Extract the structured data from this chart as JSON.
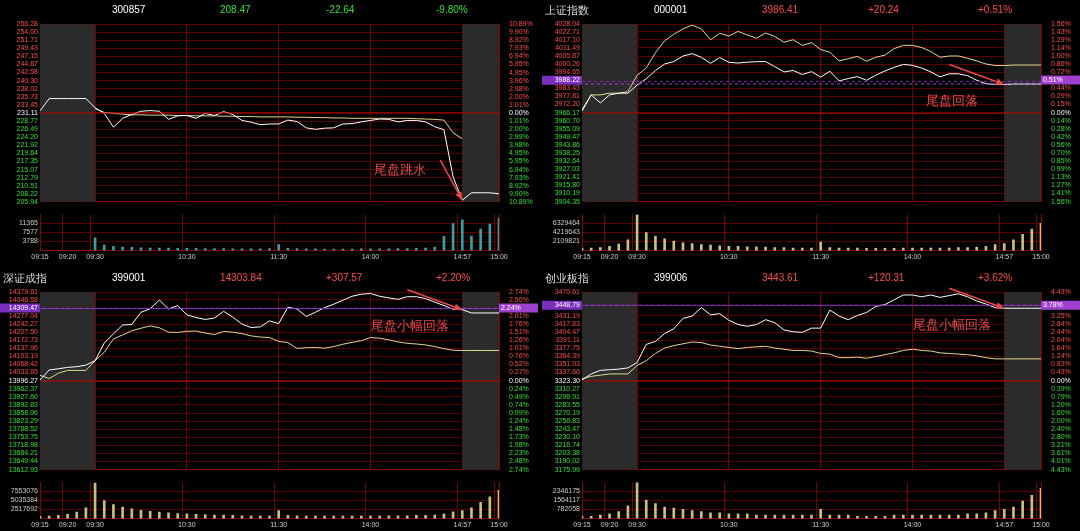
{
  "chart_data": [
    {
      "type": "line",
      "annotations": [
        "300857",
        "208.47",
        "-22.64",
        "-9.80%",
        {
          "text": "尾盘跳水",
          "x": "14:57",
          "y": 206.4
        }
      ],
      "categories": [
        "09:15",
        null,
        null,
        "09:20",
        null,
        null,
        "09:30",
        null,
        null,
        null,
        null,
        null,
        null,
        null,
        null,
        null,
        "10:30",
        null,
        null,
        null,
        null,
        null,
        null,
        null,
        null,
        null,
        "11:30",
        null,
        null,
        null,
        null,
        null,
        null,
        null,
        null,
        null,
        "14:00",
        null,
        null,
        null,
        null,
        null,
        null,
        null,
        null,
        null,
        "14:57",
        null,
        null,
        null,
        "15:00"
      ],
      "ylim": [
        205.94,
        256.28
      ],
      "yticks": [
        256.28,
        {
          "value": 254,
          "label": "254.00"
        },
        251.71,
        249.43,
        247.15,
        244.87,
        242.58,
        {
          "value": 240.3,
          "label": "240.30"
        },
        238.02,
        235.73,
        233.45,
        231.11,
        228.77,
        226.49,
        {
          "value": 224.2,
          "label": "224.20"
        },
        221.92,
        219.64,
        217.35,
        215.07,
        212.79,
        210.51,
        208.22,
        205.94
      ],
      "y2lim": [
        -10.89,
        10.89
      ],
      "y2ticks": [
        {
          "value": 10.89,
          "label": "10.89%"
        },
        {
          "value": 9.9,
          "label": "9.90%"
        },
        {
          "value": 8.92,
          "label": "8.92%"
        },
        {
          "value": 7.93,
          "label": "7.93%"
        },
        {
          "value": 6.94,
          "label": "6.94%"
        },
        {
          "value": 5.95,
          "label": "5.95%"
        },
        {
          "value": 4.95,
          "label": "4.95%"
        },
        {
          "value": 3.96,
          "label": "3.96%"
        },
        {
          "value": 2.98,
          "label": "2.98%"
        },
        {
          "value": 2,
          "label": "2.00%"
        },
        {
          "value": 1.01,
          "label": "1.01%"
        },
        {
          "value": 0,
          "label": "0.00%"
        },
        {
          "value": -1.01,
          "label": "1.01%"
        },
        {
          "value": -2,
          "label": "2.00%"
        },
        {
          "value": -2.99,
          "label": "2.99%"
        },
        {
          "value": -3.98,
          "label": "3.98%"
        },
        {
          "value": -4.95,
          "label": "4.95%"
        },
        {
          "value": -5.95,
          "label": "5.95%"
        },
        {
          "value": -6.94,
          "label": "6.94%"
        },
        {
          "value": -7.93,
          "label": "7.93%"
        },
        {
          "value": -8.92,
          "label": "8.92%"
        },
        {
          "value": -9.9,
          "label": "9.90%"
        },
        {
          "value": -10.89,
          "label": "10.89%"
        }
      ],
      "y3lim": [
        0,
        15153
      ],
      "y3ticks": [
        3788,
        7577,
        11365
      ],
      "grid": true,
      "bands": [
        {
          "axis": "x",
          "from": "09:15",
          "to": "09:30",
          "color": "#2b2b2b"
        },
        {
          "axis": "x",
          "from": "14:57",
          "to": "15:00",
          "color": "#2b2b2b"
        }
      ],
      "ref_lines": [
        {
          "axis": "y",
          "value": 231.11,
          "color": "#c00000"
        }
      ],
      "series": [
        {
          "color": "#ffffff",
          "values": [
            231.7,
            235.2,
            235.2,
            235.2,
            235.2,
            235.2,
            232.6,
            231,
            227.1,
            229.6,
            230.7,
            231.6,
            231.8,
            231.6,
            229.3,
            230.3,
            230.4,
            229.6,
            231,
            230.4,
            231.5,
            230.7,
            229,
            228.5,
            227.8,
            228,
            228,
            229.1,
            228.7,
            226.9,
            226.5,
            226.8,
            226.9,
            228,
            228.1,
            228.6,
            229,
            229.4,
            229.3,
            228.6,
            229,
            229,
            228.6,
            227.2,
            226.4,
            213,
            206.4,
            208.5,
            208.5,
            208.5,
            208.2
          ]
        },
        {
          "color": "#e0d890",
          "values": [
            null,
            null,
            null,
            null,
            null,
            null,
            232.3,
            231.3,
            231,
            230.8,
            230.6,
            230.6,
            230.5,
            230.5,
            230.5,
            230.4,
            230.4,
            230.3,
            230.3,
            230.3,
            230.2,
            230.2,
            230.1,
            230.1,
            230,
            230,
            230,
            230,
            229.9,
            229.9,
            229.8,
            229.8,
            229.7,
            229.7,
            229.6,
            229.6,
            229.6,
            229.6,
            229.6,
            229.6,
            229.6,
            229.5,
            229.4,
            229.3,
            229.1,
            225.5,
            223.8,
            null,
            null,
            null,
            null
          ]
        },
        {
          "type": "bar",
          "axis": "y3",
          "color": "#3a9e9e",
          "values": [
            null,
            null,
            null,
            null,
            null,
            null,
            5300,
            2300,
            1800,
            1500,
            1400,
            1200,
            1100,
            1000,
            1000,
            900,
            900,
            900,
            800,
            800,
            800,
            700,
            700,
            700,
            700,
            800,
            2500,
            900,
            800,
            700,
            700,
            600,
            600,
            600,
            600,
            700,
            700,
            700,
            700,
            800,
            800,
            900,
            1000,
            1500,
            5900,
            11200,
            12800,
            6000,
            9000,
            11000,
            13500
          ]
        }
      ]
    },
    {
      "type": "line",
      "title": "上证指数",
      "annotations": [
        "000001",
        "3986.41",
        "+20.24",
        "+0.51%",
        {
          "text": "尾盘回落",
          "x": "14:57",
          "y": 3986
        }
      ],
      "categories": [
        "09:15",
        null,
        null,
        "09:20",
        null,
        null,
        "09:30",
        null,
        null,
        null,
        null,
        null,
        null,
        null,
        null,
        null,
        "10:30",
        null,
        null,
        null,
        null,
        null,
        null,
        null,
        null,
        null,
        "11:30",
        null,
        null,
        null,
        null,
        null,
        null,
        null,
        null,
        null,
        "14:00",
        null,
        null,
        null,
        null,
        null,
        null,
        null,
        null,
        null,
        "14:57",
        null,
        null,
        null,
        "15:00"
      ],
      "ylim": [
        3904.35,
        4028.04
      ],
      "yticks": [
        4028.04,
        4022.71,
        {
          "value": 4017.1,
          "label": "4017.10"
        },
        4011.49,
        4005.87,
        4000.26,
        3994.65,
        3983.43,
        3977.81,
        {
          "value": 3972.2,
          "label": "3972.20"
        },
        3966.17,
        {
          "value": 3960.7,
          "label": "3960.70"
        },
        3955.09,
        3949.47,
        3943.86,
        3938.25,
        3932.64,
        3927.03,
        3921.41,
        {
          "value": 3915.8,
          "label": "3915.80"
        },
        3910.19,
        3904.35
      ],
      "y2lim": [
        -1.56,
        1.56
      ],
      "y2ticks": [
        {
          "value": 1.56,
          "label": "1.56%"
        },
        {
          "value": 1.43,
          "label": "1.43%"
        },
        {
          "value": 1.29,
          "label": "1.29%"
        },
        {
          "value": 1.14,
          "label": "1.14%"
        },
        {
          "value": 1,
          "label": "1.00%"
        },
        {
          "value": 0.86,
          "label": "0.86%"
        },
        {
          "value": 0.72,
          "label": "0.72%"
        },
        {
          "value": 0.44,
          "label": "0.44%"
        },
        {
          "value": 0.29,
          "label": "0.29%"
        },
        {
          "value": 0.15,
          "label": "0.15%"
        },
        {
          "value": 0,
          "label": "0.00%"
        },
        {
          "value": -0.14,
          "label": "0.14%"
        },
        {
          "value": -0.28,
          "label": "0.28%"
        },
        {
          "value": -0.42,
          "label": "0.42%"
        },
        {
          "value": -0.56,
          "label": "0.56%"
        },
        {
          "value": -0.7,
          "label": "0.70%"
        },
        {
          "value": -0.85,
          "label": "0.85%"
        },
        {
          "value": -0.99,
          "label": "0.99%"
        },
        {
          "value": -1.13,
          "label": "1.13%"
        },
        {
          "value": -1.27,
          "label": "1.27%"
        },
        {
          "value": -1.41,
          "label": "1.41%"
        },
        {
          "value": -1.56,
          "label": "1.56%"
        }
      ],
      "y3lim": [
        0,
        8439286
      ],
      "y3ticks": [
        2109821,
        4219643,
        6329464
      ],
      "grid": true,
      "bands": [
        {
          "axis": "x",
          "from": "09:15",
          "to": "09:30",
          "color": "#2b2b2b"
        },
        {
          "axis": "x",
          "from": "14:57",
          "to": "15:00",
          "color": "#2b2b2b"
        }
      ],
      "ref_lines": [
        {
          "axis": "y",
          "value": 3966.17,
          "color": "#c00000"
        },
        {
          "axis": "y",
          "value": 3988.22,
          "label": "3988.22",
          "color": "#7b2fbe",
          "line_style": "dashed"
        },
        {
          "axis": "y2",
          "value": 0.51,
          "label": "0.51%",
          "color": "#a040d0",
          "line_style": "dashed"
        }
      ],
      "series": [
        {
          "color": "#ffffff",
          "values": [
            3967.5,
            3978.8,
            3973.2,
            3978.8,
            3980,
            3980,
            3985.6,
            3990.1,
            3995.8,
            4000.3,
            4002,
            4005.9,
            4007.5,
            4005,
            4000.8,
            4004.8,
            4001.5,
            4001,
            4001.6,
            4001.9,
            4002,
            3998.5,
            3994.8,
            3995.8,
            3993,
            3995,
            3991.2,
            3995.3,
            3988.5,
            3990.2,
            3991.5,
            3989,
            3992.5,
            3995.5,
            3998,
            4000,
            3999.4,
            3997.5,
            3994.8,
            3991.4,
            3993.5,
            3993.5,
            3992.2,
            3989,
            3986.6,
            3986.1,
            3986,
            3986.4,
            3986.4,
            3986.4,
            3986.4
          ]
        },
        {
          "color": "#e0d890",
          "values": [
            3968.7,
            3978.8,
            3978.8,
            3980,
            3980,
            3981.1,
            3992.4,
            3997.5,
            4008.2,
            4016.5,
            4021,
            4024.8,
            4027.4,
            4024.8,
            4017.2,
            4021.7,
            4019.8,
            4023,
            4020.6,
            4018.3,
            4021.9,
            4019.5,
            4015.5,
            4017.2,
            4013.3,
            4015.2,
            4010.4,
            4008.5,
            4002.5,
            4004,
            4005.6,
            4002.2,
            4005,
            4006.5,
            4011,
            4013.3,
            4013.3,
            4011.8,
            4009,
            4005,
            4005.9,
            4005.9,
            4004.3,
            4002.5,
            4000.3,
            3999.3,
            3999.2,
            3999.6,
            3999.6,
            3999.6,
            3999.6
          ]
        },
        {
          "type": "bar",
          "axis": "y3",
          "color": "#c8c080",
          "values": [
            500000,
            600000,
            700000,
            1000000,
            1500000,
            2500000,
            8300000,
            4200000,
            3300000,
            2700000,
            2200000,
            1800000,
            1600000,
            1400000,
            1300000,
            1100000,
            1000000,
            1000000,
            900000,
            900000,
            800000,
            700000,
            700000,
            600000,
            600000,
            600000,
            2000000,
            700000,
            600000,
            600000,
            600000,
            500000,
            500000,
            500000,
            500000,
            600000,
            600000,
            600000,
            600000,
            600000,
            600000,
            700000,
            700000,
            800000,
            1000000,
            1400000,
            1600000,
            2500000,
            3800000,
            5000000,
            6300000
          ]
        }
      ]
    },
    {
      "type": "line",
      "title": "深证成指",
      "annotations": [
        "399001",
        "14303.84",
        "+307.57",
        "+2.20%",
        {
          "text": "尾盘小幅回落",
          "x": "14:57",
          "y": 14304
        }
      ],
      "categories": [
        "09:15",
        null,
        null,
        "09:20",
        null,
        null,
        "09:30",
        null,
        null,
        null,
        null,
        null,
        null,
        null,
        null,
        null,
        "10:30",
        null,
        null,
        null,
        null,
        null,
        null,
        null,
        null,
        null,
        "11:30",
        null,
        null,
        null,
        null,
        null,
        null,
        null,
        null,
        null,
        "14:00",
        null,
        null,
        null,
        null,
        null,
        null,
        null,
        null,
        null,
        "14:57",
        null,
        null,
        null,
        "15:00"
      ],
      "ylim": [
        13612.93,
        14379.61
      ],
      "yticks": [
        14379.61,
        14346.58,
        14277.04,
        14242.27,
        {
          "value": 14207.5,
          "label": "14207.50"
        },
        14172.73,
        14137.96,
        14103.19,
        14068.42,
        14033.65,
        13996.27,
        13962.37,
        {
          "value": 13927.6,
          "label": "13927.60"
        },
        13892.83,
        13858.06,
        13823.29,
        13788.52,
        13753.75,
        13718.98,
        13684.21,
        13649.44,
        13612.93
      ],
      "y2lim": [
        -2.74,
        2.74
      ],
      "y2ticks": [
        {
          "value": 2.74,
          "label": "2.74%"
        },
        {
          "value": 2.5,
          "label": "2.50%"
        },
        {
          "value": 2.01,
          "label": "2.01%"
        },
        {
          "value": 1.76,
          "label": "1.76%"
        },
        {
          "value": 1.51,
          "label": "1.51%"
        },
        {
          "value": 1.26,
          "label": "1.26%"
        },
        {
          "value": 1.01,
          "label": "1.01%"
        },
        {
          "value": 0.76,
          "label": "0.76%"
        },
        {
          "value": 0.52,
          "label": "0.52%"
        },
        {
          "value": 0.27,
          "label": "0.27%"
        },
        {
          "value": 0,
          "label": "0.00%"
        },
        {
          "value": -0.24,
          "label": "0.24%"
        },
        {
          "value": -0.49,
          "label": "0.49%"
        },
        {
          "value": -0.74,
          "label": "0.74%"
        },
        {
          "value": -0.99,
          "label": "0.99%"
        },
        {
          "value": -1.24,
          "label": "1.24%"
        },
        {
          "value": -1.48,
          "label": "1.48%"
        },
        {
          "value": -1.73,
          "label": "1.73%"
        },
        {
          "value": -1.98,
          "label": "1.98%"
        },
        {
          "value": -2.23,
          "label": "2.23%"
        },
        {
          "value": -2.48,
          "label": "2.48%"
        },
        {
          "value": -2.74,
          "label": "2.74%"
        }
      ],
      "y3lim": [
        0,
        10070768
      ],
      "y3ticks": [
        2517692,
        5035384,
        7553076
      ],
      "grid": true,
      "bands": [
        {
          "axis": "x",
          "from": "09:15",
          "to": "09:30",
          "color": "#2b2b2b"
        },
        {
          "axis": "x",
          "from": "14:57",
          "to": "15:00",
          "color": "#2b2b2b"
        }
      ],
      "ref_lines": [
        {
          "axis": "y",
          "value": 13996.27,
          "color": "#c00000"
        },
        {
          "axis": "y",
          "value": 14309.47,
          "label": "14309.47",
          "color": "#7b2fbe",
          "line_style": "dashed"
        },
        {
          "axis": "y2",
          "value": 2.24,
          "label": "2.24%",
          "color": "#a040d0",
          "line_style": "dashed"
        }
      ],
      "series": [
        {
          "color": "#ffffff",
          "values": [
            14000,
            14044,
            14049,
            14055,
            14058,
            14065,
            14084,
            14160,
            14200,
            14238,
            14240,
            14293,
            14308,
            14346,
            14307,
            14322,
            14282,
            14270,
            14262,
            14268,
            14297,
            14272,
            14242,
            14227,
            14230,
            14256,
            14244,
            14315,
            14307,
            14275,
            14293,
            14313,
            14328,
            14345,
            14362,
            14371,
            14374,
            14362,
            14355,
            14349,
            14360,
            14360,
            14352,
            14337,
            14322,
            14306,
            14304,
            14290,
            14290,
            14290,
            14290
          ]
        },
        {
          "color": "#e0d890",
          "values": [
            14021,
            14007,
            14030,
            14042,
            14042,
            14042,
            14084,
            14120,
            14178,
            14195,
            14213,
            14224,
            14234,
            14226,
            14207,
            14206,
            14211,
            14212,
            14203,
            14197,
            14210,
            14207,
            14201,
            14191,
            14186,
            14184,
            14167,
            14162,
            14137,
            14140,
            14141,
            14138,
            14145,
            14155,
            14163,
            14170,
            14184,
            14181,
            14174,
            14165,
            14159,
            14156,
            14152,
            14145,
            14136,
            14129,
            14128,
            14128,
            14128,
            14128,
            14128
          ]
        },
        {
          "type": "bar",
          "axis": "y3",
          "color": "#c8c080",
          "values": [
            600000,
            700000,
            900000,
            1200000,
            1800000,
            3000000,
            9800000,
            5000000,
            3900000,
            3200000,
            2700000,
            2300000,
            2000000,
            1800000,
            1600000,
            1400000,
            1300000,
            1200000,
            1100000,
            1000000,
            1000000,
            900000,
            800000,
            700000,
            700000,
            700000,
            2200000,
            900000,
            800000,
            700000,
            700000,
            700000,
            700000,
            700000,
            700000,
            700000,
            700000,
            700000,
            800000,
            800000,
            800000,
            900000,
            900000,
            1000000,
            1300000,
            1900000,
            2200000,
            3000000,
            4500000,
            6000000,
            7800000
          ]
        }
      ]
    },
    {
      "type": "line",
      "title": "创业板指",
      "annotations": [
        "399006",
        "3443.61",
        "+120.31",
        "+3.62%",
        {
          "text": "尾盘小幅回落",
          "x": "14:57",
          "y": 3444
        }
      ],
      "categories": [
        "09:15",
        null,
        null,
        "09:20",
        null,
        null,
        "09:30",
        null,
        null,
        null,
        null,
        null,
        null,
        null,
        null,
        null,
        "10:30",
        null,
        null,
        null,
        null,
        null,
        null,
        null,
        null,
        null,
        "11:30",
        null,
        null,
        null,
        null,
        null,
        null,
        null,
        null,
        null,
        "14:00",
        null,
        null,
        null,
        null,
        null,
        null,
        null,
        null,
        null,
        "14:57",
        null,
        null,
        null,
        "15:00"
      ],
      "ylim": [
        3175.99,
        3470.61
      ],
      "yticks": [
        3470.61,
        3431.19,
        3417.83,
        3404.47,
        3391.11,
        3377.75,
        3364.39,
        3351.03,
        3337.66,
        {
          "value": 3323.3,
          "label": "3323.30"
        },
        3310.27,
        3296.91,
        3283.55,
        3270.19,
        3256.83,
        3243.47,
        {
          "value": 3230.1,
          "label": "3230.10"
        },
        3216.74,
        3203.38,
        3190.02,
        3175.99
      ],
      "y2lim": [
        -4.43,
        4.43
      ],
      "y2ticks": [
        {
          "value": 4.43,
          "label": "4.43%"
        },
        {
          "value": 3.25,
          "label": "3.25%"
        },
        {
          "value": 2.84,
          "label": "2.84%"
        },
        {
          "value": 2.44,
          "label": "2.44%"
        },
        {
          "value": 2.04,
          "label": "2.04%"
        },
        {
          "value": 1.64,
          "label": "1.64%"
        },
        {
          "value": 1.24,
          "label": "1.24%"
        },
        {
          "value": 0.83,
          "label": "0.83%"
        },
        {
          "value": 0.43,
          "label": "0.43%"
        },
        {
          "value": 0,
          "label": "0.00%"
        },
        {
          "value": -0.39,
          "label": "0.39%"
        },
        {
          "value": -0.79,
          "label": "0.79%"
        },
        {
          "value": -1.2,
          "label": "1.20%"
        },
        {
          "value": -1.6,
          "label": "1.60%"
        },
        {
          "value": -2,
          "label": "2.00%"
        },
        {
          "value": -2.4,
          "label": "2.40%"
        },
        {
          "value": -2.8,
          "label": "2.80%"
        },
        {
          "value": -3.21,
          "label": "3.21%"
        },
        {
          "value": -3.61,
          "label": "3.61%"
        },
        {
          "value": -4.01,
          "label": "4.01%"
        },
        {
          "value": -4.43,
          "label": "4.43%"
        }
      ],
      "y3lim": [
        0,
        3128234
      ],
      "y3ticks": [
        782058,
        1564117,
        2346175
      ],
      "grid": true,
      "bands": [
        {
          "axis": "x",
          "from": "09:15",
          "to": "09:30",
          "color": "#2b2b2b"
        },
        {
          "axis": "x",
          "from": "14:57",
          "to": "15:00",
          "color": "#2b2b2b"
        }
      ],
      "ref_lines": [
        {
          "axis": "y",
          "value": 3323.3,
          "color": "#c00000"
        },
        {
          "axis": "y",
          "value": 3448.79,
          "label": "3448.79",
          "color": "#7b2fbe",
          "line_style": "dashed"
        },
        {
          "axis": "y2",
          "value": 3.78,
          "label": "3.78%",
          "color": "#a040d0",
          "line_style": "dashed"
        }
      ],
      "series": [
        {
          "color": "#ffffff",
          "values": [
            3325,
            3335,
            3341,
            3342,
            3343,
            3345,
            3354,
            3384,
            3389,
            3402,
            3410,
            3427,
            3431,
            3445,
            3433,
            3435,
            3424,
            3417,
            3414,
            3417,
            3425,
            3420,
            3408,
            3405,
            3404,
            3411,
            3411,
            3441,
            3431,
            3425,
            3432,
            3437,
            3447,
            3450,
            3458,
            3466,
            3466,
            3463,
            3466,
            3462,
            3465,
            3468,
            3463,
            3456,
            3451,
            3445,
            3444,
            3444,
            3444,
            3444,
            3444
          ]
        },
        {
          "color": "#e0d890",
          "values": [
            3327,
            3331,
            3333,
            3335,
            3335,
            3335,
            3349,
            3357,
            3369,
            3378,
            3382,
            3385,
            3388,
            3387,
            3383,
            3381,
            3379,
            3377,
            3379,
            3380,
            3381,
            3378,
            3376,
            3374,
            3374,
            3373,
            3369,
            3368,
            3362,
            3362,
            3363,
            3361,
            3364,
            3367,
            3370,
            3374,
            3376,
            3374,
            3373,
            3370,
            3369,
            3368,
            3367,
            3365,
            3362,
            3360,
            3360,
            3360,
            3360,
            3360,
            3360
          ]
        },
        {
          "type": "bar",
          "axis": "y3",
          "color": "#c8c080",
          "values": [
            200000,
            200000,
            300000,
            400000,
            600000,
            1100000,
            3100000,
            1600000,
            1300000,
            1000000,
            900000,
            800000,
            700000,
            600000,
            500000,
            500000,
            400000,
            400000,
            400000,
            300000,
            300000,
            300000,
            300000,
            300000,
            300000,
            300000,
            800000,
            300000,
            300000,
            300000,
            200000,
            200000,
            200000,
            200000,
            300000,
            300000,
            300000,
            300000,
            300000,
            300000,
            300000,
            300000,
            400000,
            400000,
            500000,
            700000,
            800000,
            1000000,
            1500000,
            2000000,
            2600000
          ]
        }
      ]
    }
  ]
}
